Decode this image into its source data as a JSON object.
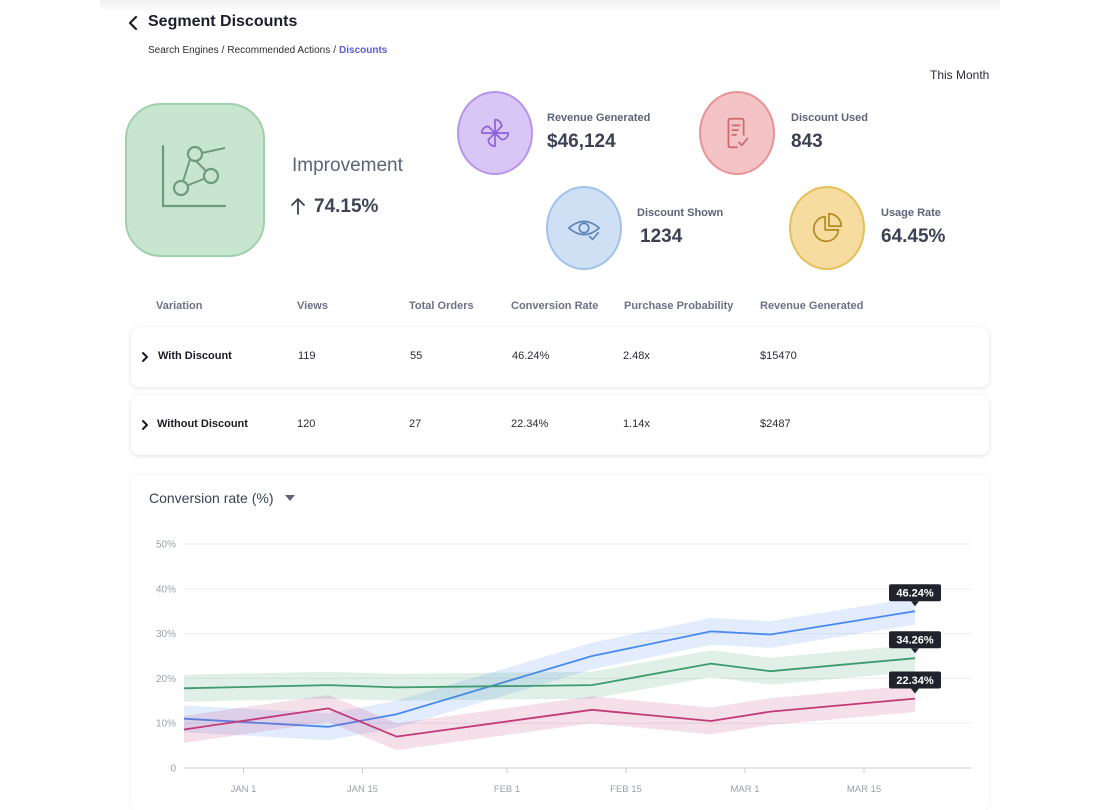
{
  "header": {
    "title": "Segment Discounts",
    "breadcrumbs": [
      "Search Engines",
      "Recommended Actions",
      "Discounts"
    ],
    "separator": "/",
    "period": "This Month"
  },
  "improvement": {
    "label": "Improvement",
    "value": "74.15%"
  },
  "kpis": [
    {
      "label": "Revenue Generated",
      "value": "$46,124",
      "icon": "pinwheel-icon",
      "color": "#b895ec"
    },
    {
      "label": "Discount Used",
      "value": "843",
      "icon": "receipt-check-icon",
      "color": "#e79598"
    },
    {
      "label": "Discount Shown",
      "value": "1234",
      "icon": "eye-check-icon",
      "color": "#a2c2ea"
    },
    {
      "label": "Usage Rate",
      "value": "64.45%",
      "icon": "pie-chart-icon",
      "color": "#e6be5c"
    }
  ],
  "table": {
    "columns": [
      "Variation",
      "Views",
      "Total Orders",
      "Conversion Rate",
      "Purchase Probability",
      "Revenue Generated"
    ],
    "rows": [
      {
        "variation": "With Discount",
        "views": "119",
        "orders": "55",
        "conversion": "46.24%",
        "probability": "2.48x",
        "revenue": "$15470"
      },
      {
        "variation": "Without Discount",
        "views": "120",
        "orders": "27",
        "conversion": "22.34%",
        "probability": "1.14x",
        "revenue": "$2487"
      }
    ]
  },
  "chart": {
    "metric_label": "Conversion rate (%)"
  },
  "chart_data": {
    "type": "line",
    "title": "Conversion rate (%)",
    "x": [
      "2024-12-25",
      "2025-01-11",
      "2025-01-19",
      "2025-02-11",
      "2025-02-25",
      "2025-03-04",
      "2025-03-21"
    ],
    "xticks": [
      "JAN 1",
      "JAN 15",
      "FEB 1",
      "FEB 15",
      "MAR 1",
      "MAR 15"
    ],
    "yticks": [
      "0",
      "10%",
      "20%",
      "30%",
      "40%",
      "50%"
    ],
    "ylim": [
      0,
      50
    ],
    "grid": true,
    "series": [
      {
        "values": [
          11,
          9.2,
          12,
          25,
          30.5,
          29.8,
          35
        ],
        "color": "#4a8af0",
        "label": "46.24%"
      },
      {
        "values": [
          17.8,
          18.5,
          18,
          18.5,
          23.3,
          21.6,
          24.5
        ],
        "color": "#3f9a6e",
        "label": "34.26%"
      },
      {
        "values": [
          8.6,
          13.3,
          7,
          13,
          10.5,
          12.6,
          15.5
        ],
        "color": "#c23a78",
        "label": "22.34%"
      }
    ]
  }
}
